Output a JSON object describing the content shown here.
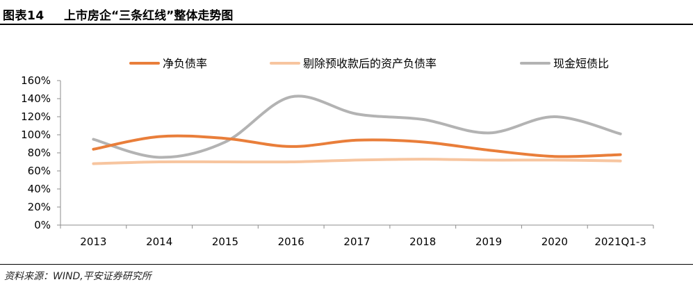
{
  "header": {
    "figure_number": "图表14",
    "title": "上市房企“三条红线”整体走势图"
  },
  "footer": {
    "source": "资料来源：WIND,平安证券研究所"
  },
  "chart_data": {
    "type": "line",
    "title": "",
    "xlabel": "",
    "ylabel": "",
    "categories": [
      "2013",
      "2014",
      "2015",
      "2016",
      "2017",
      "2018",
      "2019",
      "2020",
      "2021Q1-3"
    ],
    "ylim": [
      0,
      160
    ],
    "yticks": [
      0,
      20,
      40,
      60,
      80,
      100,
      120,
      140,
      160
    ],
    "ytick_labels": [
      "0%",
      "20%",
      "40%",
      "60%",
      "80%",
      "100%",
      "120%",
      "140%",
      "160%"
    ],
    "legend_position": "top",
    "grid": false,
    "smooth": true,
    "series": [
      {
        "name": "净负债率",
        "color": "#E97E3A",
        "values": [
          84,
          98,
          96,
          87,
          94,
          92,
          83,
          76,
          78
        ]
      },
      {
        "name": "剔除预收款后的资产负债率",
        "color": "#F7C59F",
        "values": [
          68,
          70,
          70,
          70,
          72,
          73,
          72,
          72,
          71
        ]
      },
      {
        "name": "现金短债比",
        "color": "#B3B3B3",
        "values": [
          95,
          75,
          92,
          142,
          123,
          117,
          102,
          120,
          101
        ]
      }
    ]
  }
}
